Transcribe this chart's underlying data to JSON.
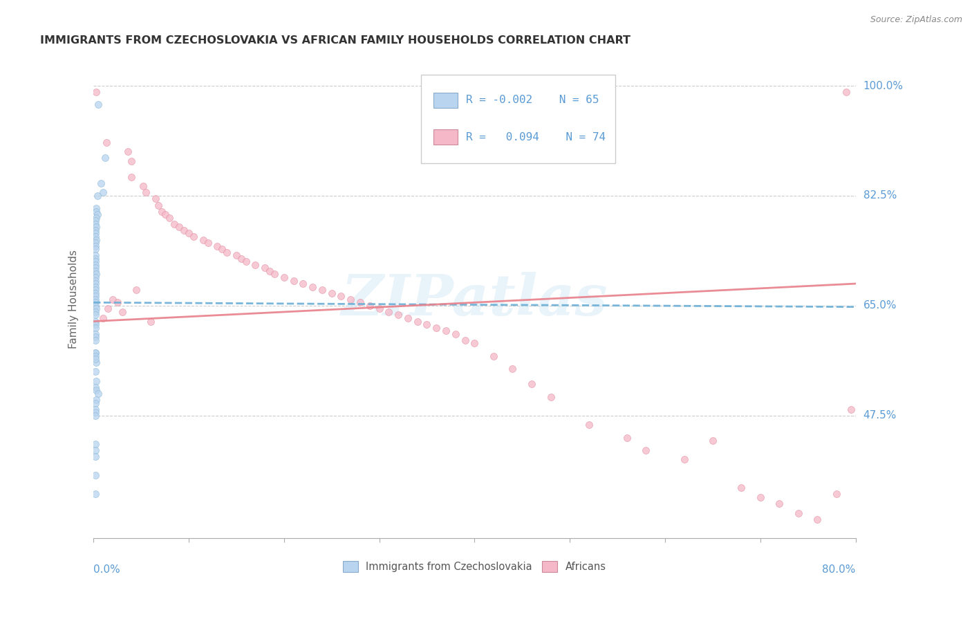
{
  "title": "IMMIGRANTS FROM CZECHOSLOVAKIA VS AFRICAN FAMILY HOUSEHOLDS CORRELATION CHART",
  "source": "Source: ZipAtlas.com",
  "ylabel": "Family Households",
  "yticks": [
    47.5,
    65.0,
    82.5,
    100.0
  ],
  "ytick_labels": [
    "47.5%",
    "65.0%",
    "82.5%",
    "100.0%"
  ],
  "blue_color": "#b8d4ee",
  "pink_color": "#f5b8c8",
  "blue_line_color": "#6aaed6",
  "pink_line_color": "#e8808a",
  "grid_color": "#cccccc",
  "title_color": "#333333",
  "source_color": "#888888",
  "axis_label_color": "#5b9bd5",
  "ylabel_color": "#666666",
  "legend_text_color": "#5b9bd5",
  "watermark": "ZIPatlas",
  "watermark_color": "#cce5f5",
  "xlim": [
    0.0,
    0.8
  ],
  "ylim": [
    28.0,
    104.0
  ],
  "blue_R": "-0.002",
  "blue_N": "65",
  "pink_R": "0.094",
  "pink_N": "74",
  "blue_trend_y0": 65.5,
  "blue_trend_y1": 64.8,
  "pink_trend_y0": 62.5,
  "pink_trend_y1": 68.5,
  "blue_scatter_x": [
    0.005,
    0.012,
    0.008,
    0.01,
    0.004,
    0.003,
    0.003,
    0.004,
    0.003,
    0.002,
    0.002,
    0.003,
    0.002,
    0.002,
    0.002,
    0.003,
    0.002,
    0.002,
    0.002,
    0.002,
    0.002,
    0.002,
    0.002,
    0.002,
    0.002,
    0.003,
    0.002,
    0.002,
    0.002,
    0.002,
    0.002,
    0.002,
    0.002,
    0.002,
    0.002,
    0.002,
    0.003,
    0.002,
    0.002,
    0.002,
    0.002,
    0.002,
    0.002,
    0.002,
    0.002,
    0.002,
    0.003,
    0.002,
    0.003,
    0.002,
    0.003,
    0.005,
    0.003,
    0.002,
    0.002,
    0.002,
    0.002,
    0.002,
    0.002,
    0.002,
    0.002,
    0.002,
    0.002,
    0.002,
    0.002
  ],
  "blue_scatter_y": [
    97.0,
    88.5,
    84.5,
    83.0,
    82.5,
    80.5,
    80.0,
    79.5,
    79.0,
    78.5,
    78.0,
    77.5,
    77.0,
    76.5,
    76.0,
    75.5,
    75.0,
    74.5,
    74.0,
    73.0,
    72.5,
    72.0,
    71.5,
    71.0,
    70.5,
    70.0,
    69.5,
    69.0,
    68.5,
    68.0,
    67.5,
    67.0,
    66.5,
    66.0,
    65.5,
    65.0,
    64.5,
    64.0,
    63.5,
    62.5,
    62.0,
    61.5,
    60.5,
    60.0,
    59.5,
    57.5,
    56.0,
    54.5,
    53.0,
    52.0,
    51.5,
    51.0,
    50.0,
    49.5,
    48.5,
    57.5,
    57.0,
    56.5,
    48.0,
    47.5,
    43.0,
    42.0,
    41.0,
    35.0,
    38.0
  ],
  "pink_scatter_x": [
    0.003,
    0.014,
    0.036,
    0.04,
    0.04,
    0.052,
    0.055,
    0.065,
    0.068,
    0.072,
    0.075,
    0.08,
    0.085,
    0.09,
    0.095,
    0.1,
    0.105,
    0.115,
    0.12,
    0.13,
    0.135,
    0.14,
    0.15,
    0.155,
    0.16,
    0.17,
    0.18,
    0.185,
    0.19,
    0.2,
    0.21,
    0.22,
    0.23,
    0.24,
    0.25,
    0.26,
    0.27,
    0.28,
    0.29,
    0.3,
    0.31,
    0.32,
    0.33,
    0.34,
    0.35,
    0.36,
    0.37,
    0.38,
    0.39,
    0.4,
    0.42,
    0.44,
    0.46,
    0.48,
    0.52,
    0.56,
    0.58,
    0.62,
    0.65,
    0.68,
    0.7,
    0.72,
    0.74,
    0.76,
    0.78,
    0.79,
    0.01,
    0.015,
    0.02,
    0.025,
    0.03,
    0.045,
    0.06,
    0.795
  ],
  "pink_scatter_y": [
    99.0,
    91.0,
    89.5,
    88.0,
    85.5,
    84.0,
    83.0,
    82.0,
    81.0,
    80.0,
    79.5,
    79.0,
    78.0,
    77.5,
    77.0,
    76.5,
    76.0,
    75.5,
    75.0,
    74.5,
    74.0,
    73.5,
    73.0,
    72.5,
    72.0,
    71.5,
    71.0,
    70.5,
    70.0,
    69.5,
    69.0,
    68.5,
    68.0,
    67.5,
    67.0,
    66.5,
    66.0,
    65.5,
    65.0,
    64.5,
    64.0,
    63.5,
    63.0,
    62.5,
    62.0,
    61.5,
    61.0,
    60.5,
    59.5,
    59.0,
    57.0,
    55.0,
    52.5,
    50.5,
    46.0,
    44.0,
    42.0,
    40.5,
    43.5,
    36.0,
    34.5,
    33.5,
    32.0,
    31.0,
    35.0,
    99.0,
    63.0,
    64.5,
    66.0,
    65.5,
    64.0,
    67.5,
    62.5,
    48.5
  ]
}
